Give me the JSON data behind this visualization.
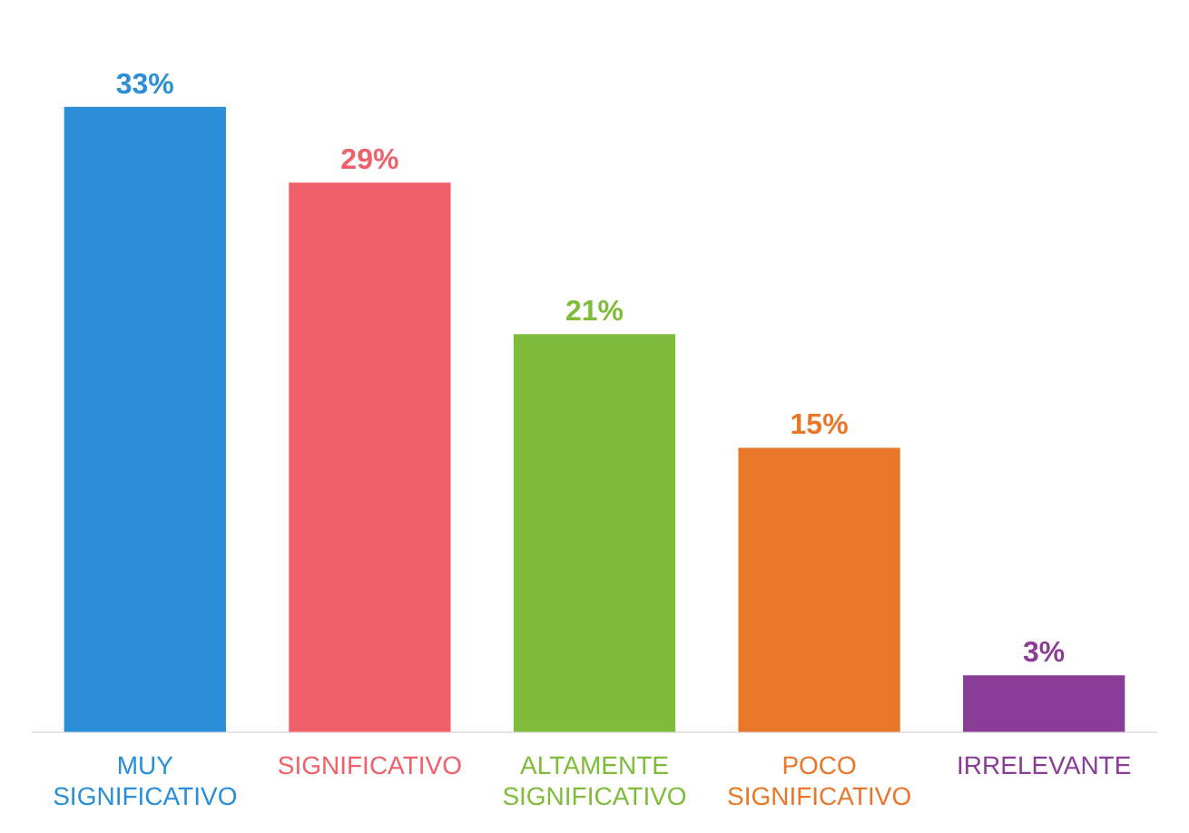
{
  "chart_data": {
    "type": "bar",
    "categories": [
      "MUY SIGNIFICATIVO",
      "SIGNIFICATIVO",
      "ALTAMENTE SIGNIFICATIVO",
      "POCO SIGNIFICATIVO",
      "IRRELEVANTE"
    ],
    "values": [
      33,
      29,
      21,
      15,
      3
    ],
    "colors": [
      "#2a8fd8",
      "#f0606a",
      "#80bc3c",
      "#e8772a",
      "#8a3d96"
    ],
    "value_labels": [
      "33%",
      "29%",
      "21%",
      "15%",
      "3%"
    ]
  }
}
